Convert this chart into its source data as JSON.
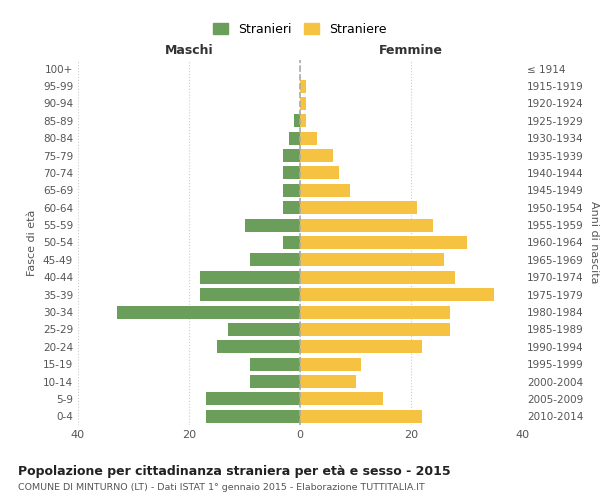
{
  "age_groups": [
    "100+",
    "95-99",
    "90-94",
    "85-89",
    "80-84",
    "75-79",
    "70-74",
    "65-69",
    "60-64",
    "55-59",
    "50-54",
    "45-49",
    "40-44",
    "35-39",
    "30-34",
    "25-29",
    "20-24",
    "15-19",
    "10-14",
    "5-9",
    "0-4"
  ],
  "birth_years": [
    "≤ 1914",
    "1915-1919",
    "1920-1924",
    "1925-1929",
    "1930-1934",
    "1935-1939",
    "1940-1944",
    "1945-1949",
    "1950-1954",
    "1955-1959",
    "1960-1964",
    "1965-1969",
    "1970-1974",
    "1975-1979",
    "1980-1984",
    "1985-1989",
    "1990-1994",
    "1995-1999",
    "2000-2004",
    "2005-2009",
    "2010-2014"
  ],
  "maschi": [
    0,
    0,
    0,
    1,
    2,
    3,
    3,
    3,
    3,
    10,
    3,
    9,
    18,
    18,
    33,
    13,
    15,
    9,
    9,
    17,
    17
  ],
  "femmine": [
    0,
    1,
    1,
    1,
    3,
    6,
    7,
    9,
    21,
    24,
    30,
    26,
    28,
    35,
    27,
    27,
    22,
    11,
    10,
    15,
    22
  ],
  "maschi_color": "#6a9e5a",
  "femmine_color": "#f5c242",
  "background_color": "#ffffff",
  "grid_color": "#cccccc",
  "title": "Popolazione per cittadinanza straniera per età e sesso - 2015",
  "subtitle": "COMUNE DI MINTURNO (LT) - Dati ISTAT 1° gennaio 2015 - Elaborazione TUTTITALIA.IT",
  "xlabel_left": "Maschi",
  "xlabel_right": "Femmine",
  "ylabel_left": "Fasce di età",
  "ylabel_right": "Anni di nascita",
  "legend_maschi": "Stranieri",
  "legend_femmine": "Straniere",
  "xlim": 40,
  "xticks": [
    -40,
    -20,
    0,
    20,
    40
  ],
  "xticklabels": [
    "40",
    "20",
    "0",
    "20",
    "40"
  ]
}
